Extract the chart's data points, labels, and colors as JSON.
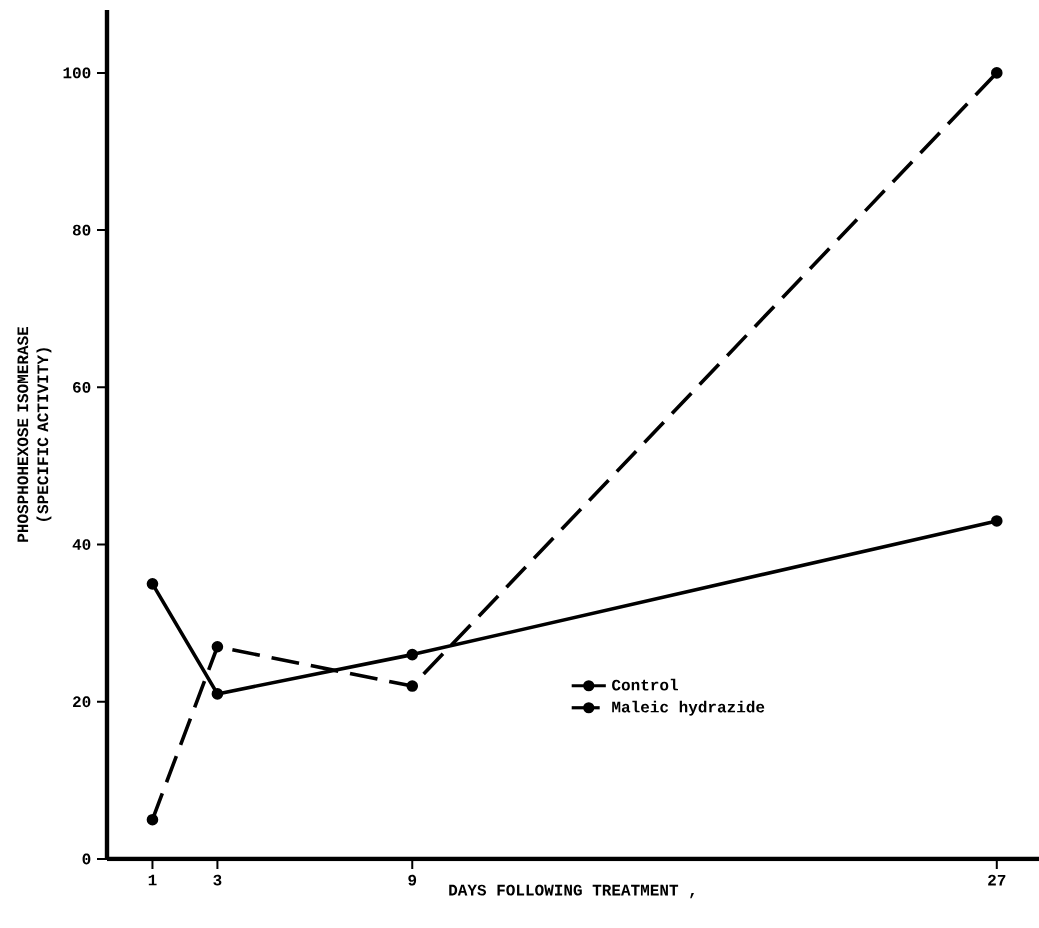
{
  "chart_data": {
    "type": "line",
    "xlabel": "DAYS FOLLOWING TREATMENT ,",
    "ylabel": "PHOSPHOHEXOSE ISOMERASE (SPECIFIC ACTIVITY)",
    "x": [
      1,
      3,
      9,
      27
    ],
    "series": [
      {
        "name": "Control",
        "color": "#000000",
        "values": [
          35,
          21,
          26,
          43
        ],
        "line_style": "solid"
      },
      {
        "name": "Maleic hydrazide",
        "color": "#000000",
        "values": [
          5,
          27,
          22,
          100
        ],
        "line_style": "dashed"
      }
    ],
    "xlim": [
      -0.4,
      28.3
    ],
    "ylim": [
      0,
      108
    ],
    "xticks": [
      1,
      3,
      9,
      27
    ],
    "yticks": [
      0,
      20,
      40,
      60,
      80,
      100
    ],
    "marker": "circle",
    "legend": "bottom right",
    "grid": false
  }
}
